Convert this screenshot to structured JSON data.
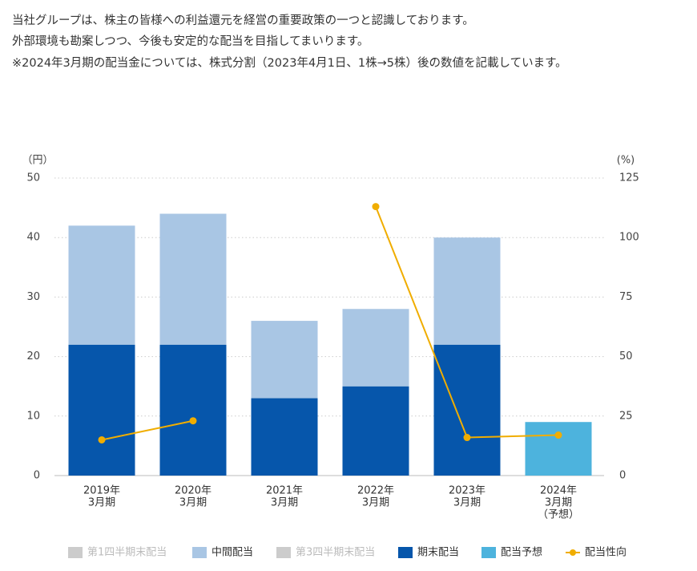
{
  "intro": [
    "当社グループは、株主の皆様への利益還元を経営の重要政策の一つと認識しております。",
    "外部環境も勘案しつつ、今後も安定的な配当を目指してまいります。",
    "※2024年3月期の配当金については、株式分割（2023年4月1日、1株→5株）後の数値を記載しています。"
  ],
  "chart_data": {
    "type": "bar",
    "stacked": true,
    "y_label": "（円）",
    "y2_label": "(%)",
    "categories": [
      [
        "2019年",
        "3月期"
      ],
      [
        "2020年",
        "3月期"
      ],
      [
        "2021年",
        "3月期"
      ],
      [
        "2022年",
        "3月期"
      ],
      [
        "2023年",
        "3月期"
      ],
      [
        "2024年",
        "3月期",
        "（予想）"
      ]
    ],
    "ylim": [
      0,
      50
    ],
    "yticks": [
      0,
      10,
      20,
      30,
      40,
      50
    ],
    "y2lim": [
      0,
      125
    ],
    "y2ticks": [
      0,
      25,
      50,
      75,
      100,
      125
    ],
    "grid": true,
    "series": [
      {
        "name": "第1四半期末配当",
        "color": "#cccccc",
        "visible": false,
        "values": [
          null,
          null,
          null,
          null,
          null,
          null
        ]
      },
      {
        "name": "中間配当",
        "color": "#a9c6e4",
        "visible": true,
        "values": [
          20,
          22,
          13,
          13,
          18,
          null
        ]
      },
      {
        "name": "第3四半期末配当",
        "color": "#cccccc",
        "visible": false,
        "values": [
          null,
          null,
          null,
          null,
          null,
          null
        ]
      },
      {
        "name": "期末配当",
        "color": "#0656ab",
        "visible": true,
        "values": [
          22,
          22,
          13,
          15,
          22,
          null
        ]
      },
      {
        "name": "配当予想",
        "color": "#4db3dd",
        "visible": true,
        "values": [
          null,
          null,
          null,
          null,
          null,
          9
        ]
      },
      {
        "name": "配当性向",
        "color": "#f0ad00",
        "visible": true,
        "type": "line",
        "axis": "y2",
        "values": [
          15,
          23,
          null,
          113,
          16,
          17
        ]
      }
    ]
  }
}
